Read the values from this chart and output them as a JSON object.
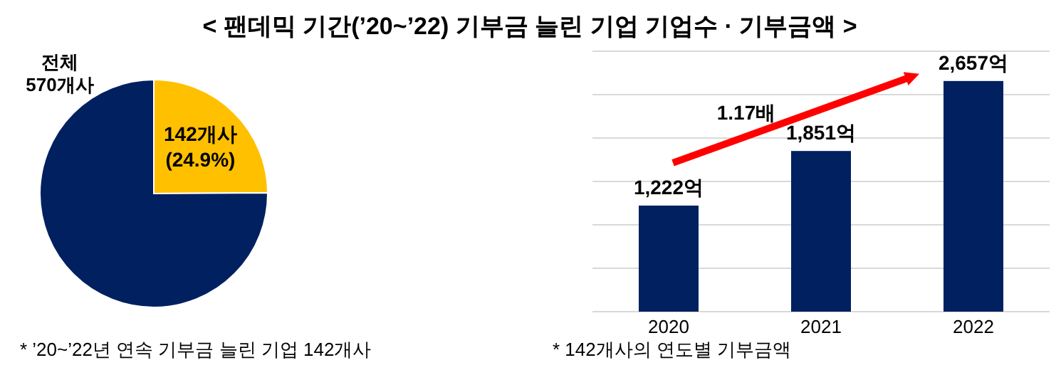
{
  "chart_data": [
    {
      "type": "pie",
      "title": "< 팬데믹 기간(’20~’22) 기부금 늘린 기업 기업수 · 기부금액 >",
      "categories": [
        "142개사 (24.9%)",
        null
      ],
      "values": [
        24.9,
        75.1
      ],
      "colors": [
        "#ffc000",
        "#002060"
      ],
      "annotations": [
        "전체 570개사",
        "* ’20~’22년 연속 기부금 늘린 기업 142개사"
      ]
    },
    {
      "type": "bar",
      "categories": [
        "2020",
        "2021",
        "2022"
      ],
      "values": [
        1222,
        1851,
        2657
      ],
      "color": "#002060",
      "value_labels": [
        "1,222억",
        "1,851억",
        "2,657억"
      ],
      "ylim": [
        0,
        3000
      ],
      "yticks": [
        {
          "value": 0,
          "label": null
        },
        {
          "value": 500,
          "label": null
        },
        {
          "value": 1000,
          "label": null
        },
        {
          "value": 1500,
          "label": null
        },
        {
          "value": 2000,
          "label": null
        },
        {
          "value": 2500,
          "label": null
        },
        {
          "value": 3000,
          "label": null
        }
      ],
      "grid": "y",
      "annotations": [
        "1.17배",
        "* 142개사의 연도별 기부금액"
      ]
    }
  ]
}
